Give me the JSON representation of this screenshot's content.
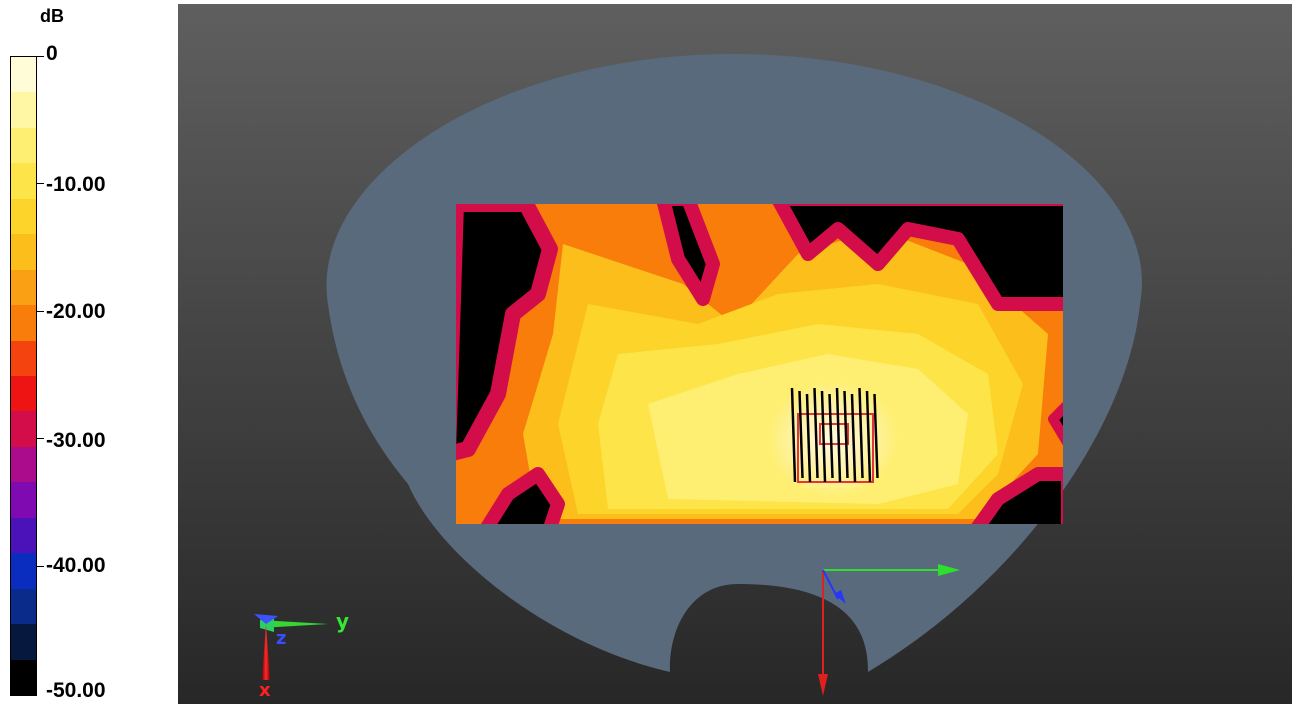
{
  "legend": {
    "unit": "dB",
    "ticks": [
      "0",
      "-10.00",
      "-20.00",
      "-30.00",
      "-40.00",
      "-50.00"
    ]
  },
  "colors": {
    "scale": [
      "#000000",
      "#07183f",
      "#0a2b8a",
      "#0b2dbf",
      "#4a12b8",
      "#7f0ab2",
      "#ab0c8c",
      "#d20d4a",
      "#ef1414",
      "#f4430f",
      "#f87d0b",
      "#faa014",
      "#fbbe1b",
      "#fcd42a",
      "#fde448",
      "#feef72",
      "#fff7a4",
      "#fffcd7"
    ],
    "phantom": "#596a7c",
    "background_top": "#5f5f5f",
    "background_bottom": "#272727"
  },
  "axes": {
    "left_triad": {
      "y_label": "y",
      "z_label": "z",
      "x_label": "x"
    }
  },
  "chart_data": {
    "type": "heatmap",
    "unit": "dB",
    "zlim": [
      -50,
      0
    ],
    "ticks": [
      0,
      -10,
      -20,
      -30,
      -40,
      -50
    ],
    "levels": 18
  }
}
